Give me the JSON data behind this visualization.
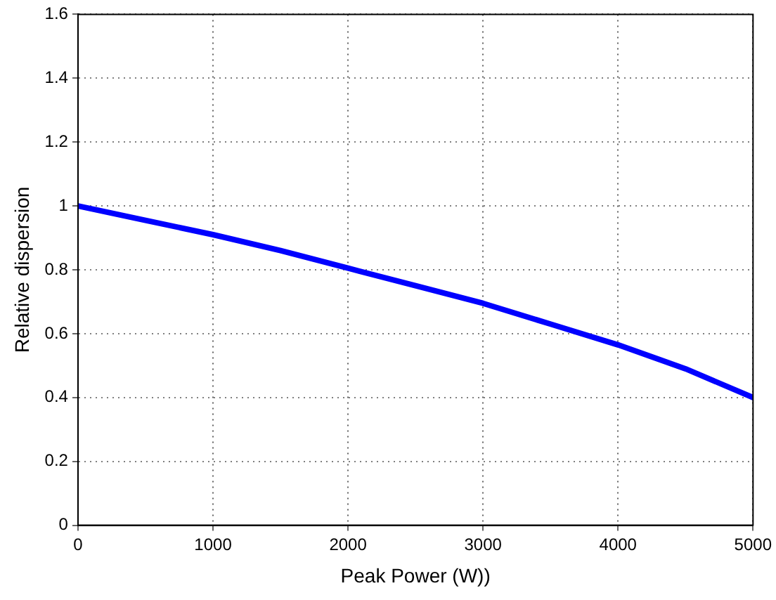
{
  "chart_data": {
    "type": "line",
    "xlabel": "Peak Power (W))",
    "ylabel": "Relative dispersion",
    "x": [
      0,
      500,
      1000,
      1500,
      2000,
      2500,
      3000,
      3500,
      4000,
      4500,
      5000
    ],
    "series": [
      {
        "color": "#0000ff",
        "values": [
          1.0,
          0.955,
          0.91,
          0.86,
          0.805,
          0.75,
          0.695,
          0.63,
          0.565,
          0.49,
          0.4
        ]
      }
    ],
    "xlim": [
      0,
      5000
    ],
    "xticks": [
      0,
      1000,
      2000,
      3000,
      4000,
      5000
    ],
    "ylim": [
      0,
      1.6
    ],
    "yticks": [
      0,
      0.2,
      0.4,
      0.6,
      0.8,
      1,
      1.2,
      1.4,
      1.6
    ],
    "grid": true,
    "legend": false,
    "marker": "none",
    "line_style": "solid"
  }
}
